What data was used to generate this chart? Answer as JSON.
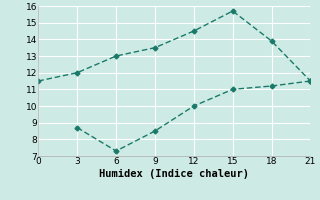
{
  "xlabel": "Humidex (Indice chaleur)",
  "x_upper": [
    0,
    3,
    6,
    9,
    12,
    15,
    18,
    21
  ],
  "y_upper": [
    11.5,
    12.0,
    13.0,
    13.5,
    14.5,
    15.7,
    13.9,
    11.5
  ],
  "x_lower": [
    3,
    6,
    9,
    12,
    15,
    18,
    21
  ],
  "y_lower": [
    8.7,
    7.3,
    8.5,
    10.0,
    11.0,
    11.2,
    11.5
  ],
  "line_color": "#1a7a6a",
  "marker": "D",
  "marker_size": 2.5,
  "xlim": [
    0,
    21
  ],
  "ylim": [
    7,
    16
  ],
  "xticks": [
    0,
    3,
    6,
    9,
    12,
    15,
    18,
    21
  ],
  "yticks": [
    7,
    8,
    9,
    10,
    11,
    12,
    13,
    14,
    15,
    16
  ],
  "bg_color": "#ceeae4",
  "grid_color": "#ffffff",
  "linewidth": 1.0,
  "xlabel_fontsize": 7.5,
  "tick_fontsize": 6.5
}
